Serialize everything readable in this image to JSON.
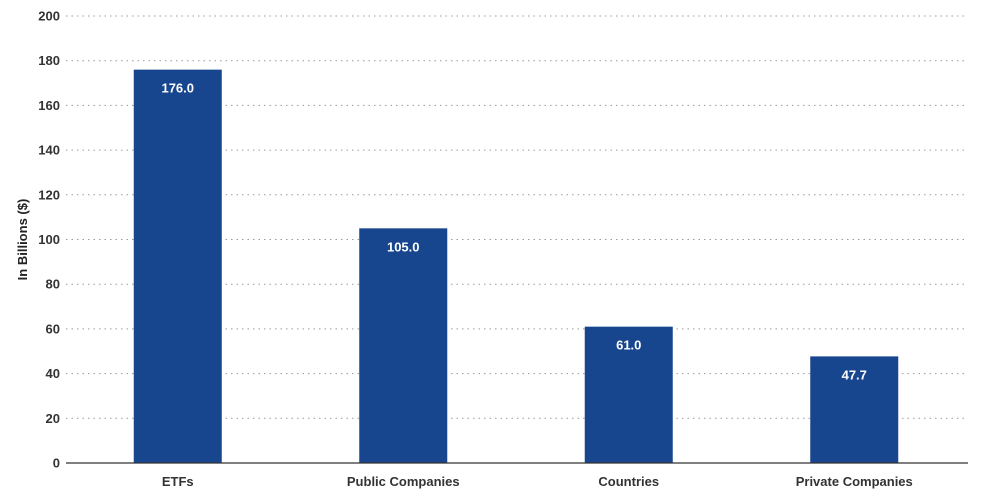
{
  "chart_data": {
    "type": "bar",
    "title": "",
    "xlabel": "",
    "ylabel": "In Billions ($)",
    "categories": [
      "ETFs",
      "Public Companies",
      "Countries",
      "Private Companies"
    ],
    "values": [
      176.0,
      105.0,
      61.0,
      47.7
    ],
    "data_labels": [
      "176.0",
      "105.0",
      "61.0",
      "47.7"
    ],
    "ylim": [
      0,
      200
    ],
    "yticks": [
      0,
      20,
      40,
      60,
      80,
      100,
      120,
      140,
      160,
      180,
      200
    ],
    "grid": true,
    "bar_color": "#17468e"
  }
}
